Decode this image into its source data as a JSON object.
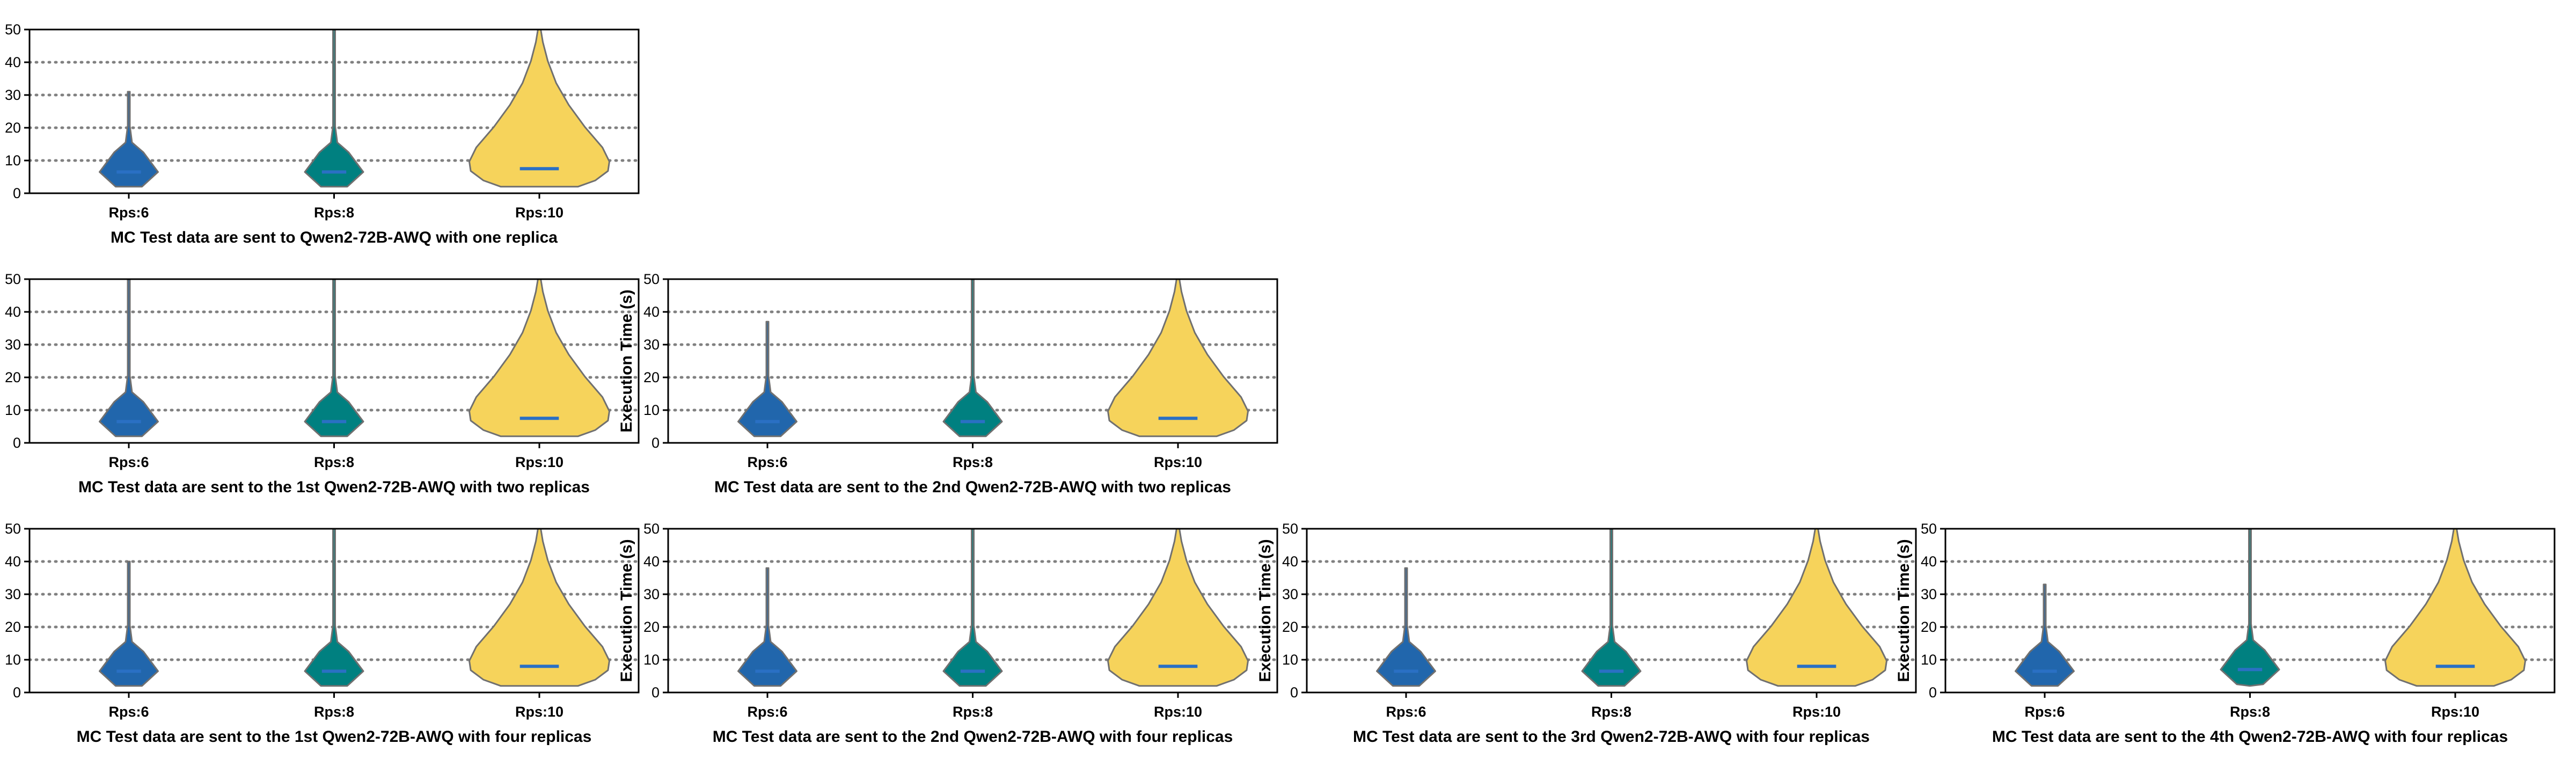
{
  "colors": {
    "rps6": "#2166ac",
    "rps8": "#008080",
    "rps10": "#f6d35b",
    "outline": "#707070",
    "median": "#2a70c4",
    "grid": "#808080"
  },
  "chart_data": [
    {
      "type": "violin",
      "caption": "MC Test data are sent to Qwen2-72B-AWQ with one replica",
      "ylabel": "Execution Time (s)",
      "ylim": [
        0,
        50
      ],
      "yticks": [
        0,
        10,
        20,
        30,
        40,
        50
      ],
      "grid": "horizontal dotted",
      "categories": [
        "Rps:6",
        "Rps:8",
        "Rps:10"
      ],
      "series": [
        {
          "label": "Rps:6",
          "min": 2,
          "max": 31,
          "median": 6.5
        },
        {
          "label": "Rps:8",
          "min": 2,
          "max": 50,
          "median": 6.5
        },
        {
          "label": "Rps:10",
          "min": 2,
          "max": 50,
          "median": 7.5
        }
      ]
    },
    {
      "type": "violin",
      "caption": "MC Test data are sent to the 1st Qwen2-72B-AWQ with two replicas",
      "ylabel": "Execution Time (s)",
      "ylim": [
        0,
        50
      ],
      "yticks": [
        0,
        10,
        20,
        30,
        40,
        50
      ],
      "grid": "horizontal dotted",
      "categories": [
        "Rps:6",
        "Rps:8",
        "Rps:10"
      ],
      "series": [
        {
          "label": "Rps:6",
          "min": 2,
          "max": 50,
          "median": 6.5
        },
        {
          "label": "Rps:8",
          "min": 2,
          "max": 50,
          "median": 6.5
        },
        {
          "label": "Rps:10",
          "min": 2,
          "max": 50,
          "median": 7.5
        }
      ]
    },
    {
      "type": "violin",
      "caption": "MC Test data are sent to the 2nd Qwen2-72B-AWQ with two replicas",
      "ylabel": "Execution Time (s)",
      "ylim": [
        0,
        50
      ],
      "yticks": [
        0,
        10,
        20,
        30,
        40,
        50
      ],
      "grid": "horizontal dotted",
      "categories": [
        "Rps:6",
        "Rps:8",
        "Rps:10"
      ],
      "series": [
        {
          "label": "Rps:6",
          "min": 2,
          "max": 37,
          "median": 6.5
        },
        {
          "label": "Rps:8",
          "min": 2,
          "max": 50,
          "median": 6.5
        },
        {
          "label": "Rps:10",
          "min": 2,
          "max": 50,
          "median": 7.5
        }
      ]
    },
    {
      "type": "violin",
      "caption": "MC Test data are sent to the 1st Qwen2-72B-AWQ with four replicas",
      "ylabel": "Execution Time (s)",
      "ylim": [
        0,
        50
      ],
      "yticks": [
        0,
        10,
        20,
        30,
        40,
        50
      ],
      "grid": "horizontal dotted",
      "categories": [
        "Rps:6",
        "Rps:8",
        "Rps:10"
      ],
      "series": [
        {
          "label": "Rps:6",
          "min": 2,
          "max": 40,
          "median": 6.5
        },
        {
          "label": "Rps:8",
          "min": 2,
          "max": 50,
          "median": 6.5
        },
        {
          "label": "Rps:10",
          "min": 2,
          "max": 50,
          "median": 8
        }
      ]
    },
    {
      "type": "violin",
      "caption": "MC Test data are sent to the 2nd Qwen2-72B-AWQ with four replicas",
      "ylabel": "Execution Time (s)",
      "ylim": [
        0,
        50
      ],
      "yticks": [
        0,
        10,
        20,
        30,
        40,
        50
      ],
      "grid": "horizontal dotted",
      "categories": [
        "Rps:6",
        "Rps:8",
        "Rps:10"
      ],
      "series": [
        {
          "label": "Rps:6",
          "min": 2,
          "max": 38,
          "median": 6.5
        },
        {
          "label": "Rps:8",
          "min": 2,
          "max": 50,
          "median": 6.5
        },
        {
          "label": "Rps:10",
          "min": 2,
          "max": 50,
          "median": 8
        }
      ]
    },
    {
      "type": "violin",
      "caption": "MC Test data are sent to the 3rd Qwen2-72B-AWQ with four replicas",
      "ylabel": "Execution Time (s)",
      "ylim": [
        0,
        50
      ],
      "yticks": [
        0,
        10,
        20,
        30,
        40,
        50
      ],
      "grid": "horizontal dotted",
      "categories": [
        "Rps:6",
        "Rps:8",
        "Rps:10"
      ],
      "series": [
        {
          "label": "Rps:6",
          "min": 2,
          "max": 38,
          "median": 6.5
        },
        {
          "label": "Rps:8",
          "min": 2,
          "max": 50,
          "median": 6.5
        },
        {
          "label": "Rps:10",
          "min": 2,
          "max": 50,
          "median": 8
        }
      ]
    },
    {
      "type": "violin",
      "caption": "MC Test data are sent to the 4th Qwen2-72B-AWQ with four replicas",
      "ylabel": "Execution Time (s)",
      "ylim": [
        0,
        50
      ],
      "yticks": [
        0,
        10,
        20,
        30,
        40,
        50
      ],
      "grid": "horizontal dotted",
      "categories": [
        "Rps:6",
        "Rps:8",
        "Rps:10"
      ],
      "series": [
        {
          "label": "Rps:6",
          "min": 2,
          "max": 33,
          "median": 6.5
        },
        {
          "label": "Rps:8",
          "min": 2,
          "max": 50,
          "median": 7
        },
        {
          "label": "Rps:10",
          "min": 2,
          "max": 50,
          "median": 8
        }
      ]
    }
  ]
}
